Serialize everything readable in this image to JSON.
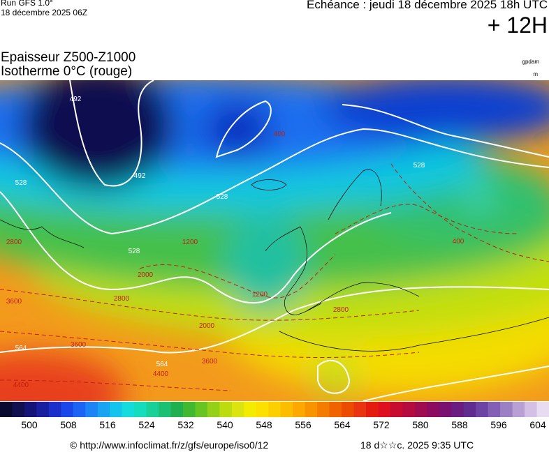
{
  "header": {
    "run": "Run GFS 1.0°",
    "run_date": "18 décembre 2025 06Z",
    "valid": "Echéance : jeudi 18 décembre 2025 18h UTC",
    "lead": "+ 12H"
  },
  "title": {
    "line1": "Epaisseur Z500-Z1000",
    "line2": "Isotherme 0°C (rouge)"
  },
  "units": {
    "thickness": "gpdam",
    "height": "m"
  },
  "map_labels": [
    "492",
    "492",
    "528",
    "528",
    "528",
    "528",
    "564",
    "564",
    "400",
    "400",
    "1200",
    "1200",
    "2000",
    "2000",
    "2800",
    "2800",
    "2800",
    "3600",
    "3600",
    "3600",
    "4400",
    "4400"
  ],
  "colorbar": {
    "labels": [
      500,
      508,
      516,
      524,
      532,
      540,
      548,
      556,
      564,
      572,
      580,
      588,
      596,
      604
    ]
  },
  "footer": {
    "source": "© http://www.infoclimat.fr/z/gfs/europe/iso0/12",
    "generated": "18 d☆☆c. 2025  9:35 UTC"
  }
}
